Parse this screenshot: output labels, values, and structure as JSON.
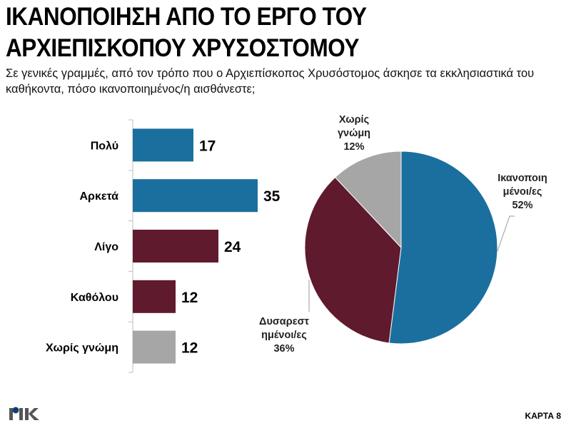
{
  "title_line1": "ΙΚΑΝΟΠΟΙΗΣΗ ΑΠΟ ΤΟ ΕΡΓΟ ΤΟΥ",
  "title_line2": "ΑΡΧΙΕΠΙΣΚΟΠΟΥ ΧΡΥΣΟΣΤΟΜΟΥ",
  "subtitle": "Σε γενικές γραμμές, από τον τρόπο που ο Αρχιεπίσκοπος Χρυσόστομος άσκησε τα εκκλησιαστικά του καθήκοντα, πόσο ικανοποιημένος/η αισθάνεστε;",
  "logo_text": "ΡΙΚ",
  "card_label": "ΚΑΡΤΑ 8",
  "colors": {
    "blue": "#1b6f9e",
    "maroon": "#5f1a2d",
    "gray": "#a6a6a6"
  },
  "chart_data": [
    {
      "type": "bar",
      "orientation": "horizontal",
      "categories": [
        "Πολύ",
        "Αρκετά",
        "Λίγο",
        "Καθόλου",
        "Χωρίς γνώμη"
      ],
      "values": [
        17,
        35,
        24,
        12,
        12
      ],
      "bar_colors": [
        "blue",
        "blue",
        "maroon",
        "maroon",
        "gray"
      ],
      "data_labels": [
        "17",
        "35",
        "24",
        "12",
        "12"
      ],
      "xlim": [
        0,
        40
      ],
      "grid": false
    },
    {
      "type": "pie",
      "slices": [
        {
          "label_line1": "Ικανοποιη",
          "label_line2": "μένοι/ες",
          "pct_label": "52%",
          "value": 52,
          "color": "blue"
        },
        {
          "label_line1": "Δυσαρεστ",
          "label_line2": "ημένοι/ες",
          "pct_label": "36%",
          "value": 36,
          "color": "maroon"
        },
        {
          "label_line1": "Χωρίς",
          "label_line2": "γνώμη",
          "pct_label": "12%",
          "value": 12,
          "color": "gray"
        }
      ]
    }
  ]
}
